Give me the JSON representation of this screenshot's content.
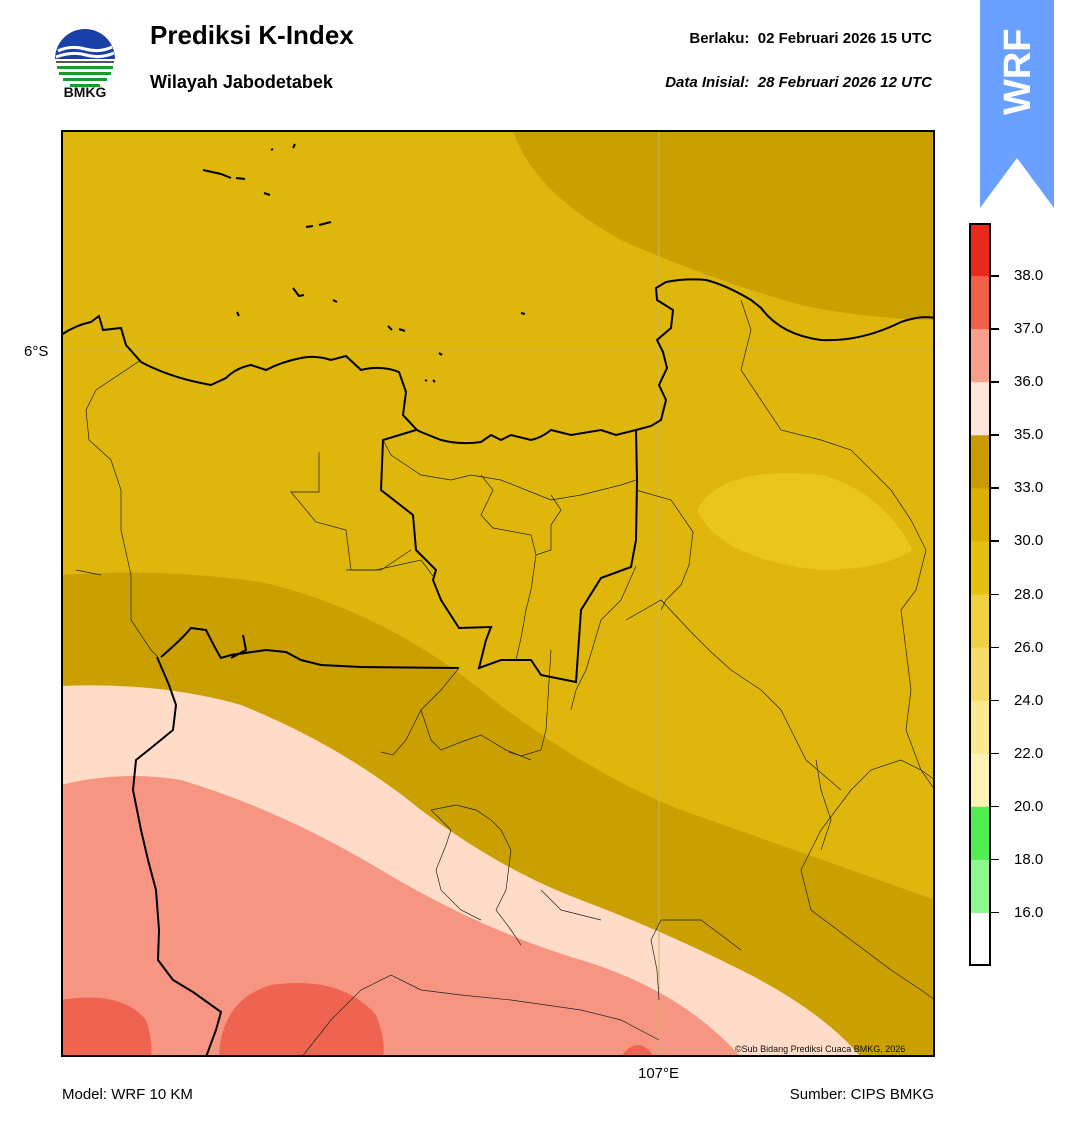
{
  "header": {
    "logo_text": "BMKG",
    "title": "Prediksi K-Index",
    "subtitle": "Wilayah Jabodetabek",
    "valid_label": "Berlaku:",
    "valid_value": "02 Februari 2026 15 UTC",
    "init_label": "Data Inisial:",
    "init_value": "28 Februari 2026 12 UTC"
  },
  "badge": {
    "text": "WRF",
    "color": "#6aa0ff"
  },
  "map": {
    "lat_label": "6°S",
    "lon_label": "107°E",
    "copyright": "©Sub Bidang Prediksi Cuaca BMKG, 2026",
    "fill_colors": {
      "k_28_30": "#deb60c",
      "k_30_33": "#c9a000",
      "k_26_28": "#e8c71a",
      "k_35_36": "#ffdcc8",
      "k_36_37": "#f79583",
      "k_37_38": "#ee6450"
    }
  },
  "colorbar": {
    "labels": [
      "38.0",
      "37.0",
      "36.0",
      "35.0",
      "33.0",
      "30.0",
      "28.0",
      "26.0",
      "24.0",
      "22.0",
      "20.0",
      "18.0",
      "16.0"
    ],
    "colors": [
      "#e8281a",
      "#f2604a",
      "#f8a08a",
      "#ffe6da",
      "#c89a00",
      "#dcb000",
      "#e6c010",
      "#f0d040",
      "#f6dd6a",
      "#fae98e",
      "#fdf3b6",
      "#50ee50",
      "#90f890",
      "#ffffff"
    ]
  },
  "footer": {
    "model": "Model: WRF 10 KM",
    "source": "Sumber: CIPS BMKG"
  }
}
